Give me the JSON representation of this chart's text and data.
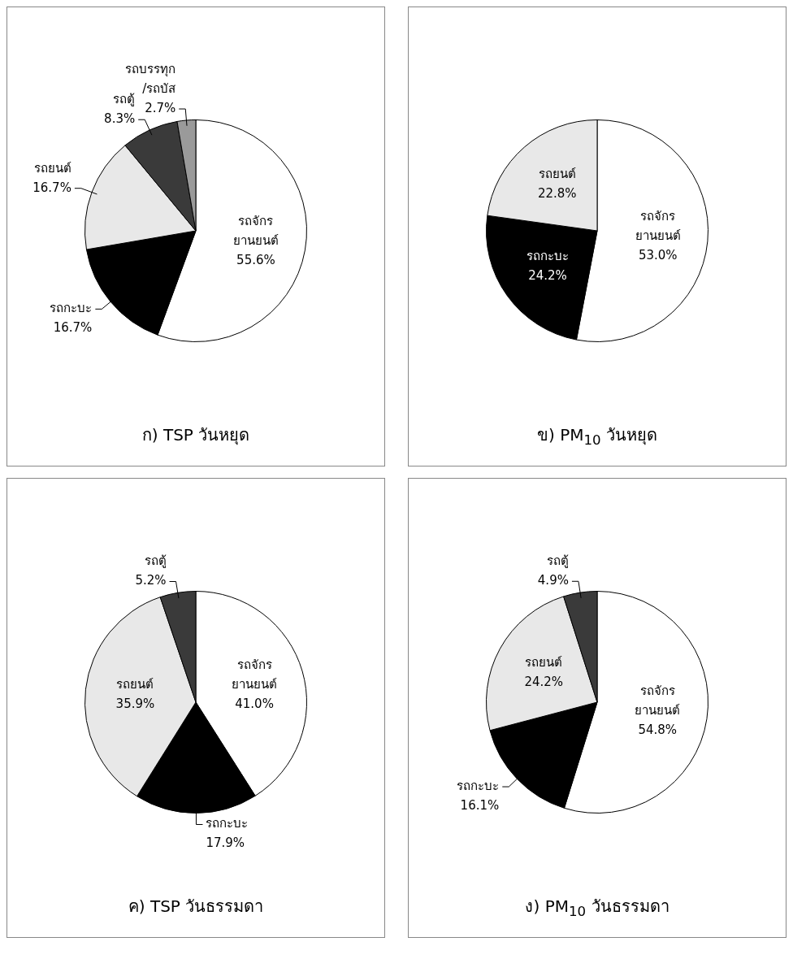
{
  "chart_data": [
    {
      "type": "pie",
      "title": "ก) TSP  วันหยุด",
      "categories": [
        "รถจักร\nยานยนต์",
        "รถกะบะ",
        "รถยนต์",
        "รถตู้",
        "รถบรรทุก\n/รถบัส"
      ],
      "values": [
        55.6,
        16.7,
        16.7,
        8.3,
        2.7
      ],
      "value_labels": [
        "55.6%",
        "16.7%",
        "16.7%",
        "8.3%",
        "2.7%"
      ],
      "colors": [
        "#ffffff",
        "#000000",
        "#e8e8e8",
        "#3a3a3a",
        "#9a9a9a"
      ]
    },
    {
      "type": "pie",
      "title": "ข) PM$_{10}$  วันหยุด",
      "categories": [
        "รถจักร\nยานยนต์",
        "รถกะบะ",
        "รถยนต์"
      ],
      "values": [
        53.0,
        24.2,
        22.8
      ],
      "value_labels": [
        "53.0%",
        "24.2%",
        "22.8%"
      ],
      "colors": [
        "#ffffff",
        "#000000",
        "#e8e8e8"
      ]
    },
    {
      "type": "pie",
      "title": "ค) TSP  วันธรรมดา",
      "categories": [
        "รถจักร\nยานยนต์",
        "รถกะบะ",
        "รถยนต์",
        "รถตู้"
      ],
      "values": [
        41.0,
        17.9,
        35.9,
        5.2
      ],
      "value_labels": [
        "41.0%",
        "17.9%",
        "35.9%",
        "5.2%"
      ],
      "colors": [
        "#ffffff",
        "#000000",
        "#e8e8e8",
        "#3a3a3a"
      ]
    },
    {
      "type": "pie",
      "title": "ง) PM$_{10}$  วันธรรมดา",
      "categories": [
        "รถจักร\nยานยนต์",
        "รถกะบะ",
        "รถยนต์",
        "รถตู้"
      ],
      "values": [
        54.8,
        16.1,
        24.2,
        4.9
      ],
      "value_labels": [
        "54.8%",
        "16.1%",
        "24.2%",
        "4.9%"
      ],
      "colors": [
        "#ffffff",
        "#000000",
        "#e8e8e8",
        "#3a3a3a"
      ]
    }
  ]
}
